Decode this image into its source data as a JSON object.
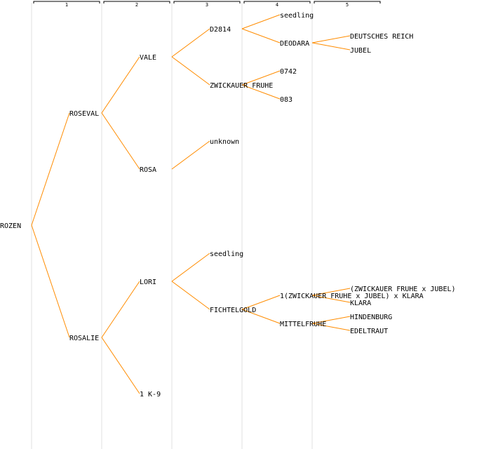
{
  "generations": [
    "1",
    "2",
    "3",
    "4",
    "5"
  ],
  "colors": {
    "edge": "#ff8c00",
    "text": "#000000",
    "column": "#f0f0f0"
  },
  "tree": {
    "name": "ROZEN",
    "children": [
      {
        "name": "ROSEVAL",
        "children": [
          {
            "name": "VALE",
            "children": [
              {
                "name": "D2814",
                "children": [
                  {
                    "name": "seedling"
                  },
                  {
                    "name": "DEODARA",
                    "children": [
                      {
                        "name": "DEUTSCHES REICH"
                      },
                      {
                        "name": "JUBEL"
                      }
                    ]
                  }
                ]
              },
              {
                "name": "ZWICKAUER FRUHE",
                "children": [
                  {
                    "name": "0742"
                  },
                  {
                    "name": "083"
                  }
                ]
              }
            ]
          },
          {
            "name": "ROSA",
            "children": [
              {
                "name": "unknown"
              }
            ]
          }
        ]
      },
      {
        "name": "ROSALIE",
        "children": [
          {
            "name": "LORI",
            "children": [
              {
                "name": "seedling"
              },
              {
                "name": "FICHTELGOLD",
                "children": [
                  {
                    "name": "1(ZWICKAUER FRUHE x JUBEL) x KLARA",
                    "children": [
                      {
                        "name": "(ZWICKAUER FRUHE x JUBEL)"
                      },
                      {
                        "name": "KLARA"
                      }
                    ]
                  },
                  {
                    "name": "MITTELFRUHE",
                    "children": [
                      {
                        "name": "HINDENBURG"
                      },
                      {
                        "name": "EDELTRAUT"
                      }
                    ]
                  }
                ]
              }
            ]
          },
          {
            "name": "1 K-9"
          }
        ]
      }
    ]
  }
}
